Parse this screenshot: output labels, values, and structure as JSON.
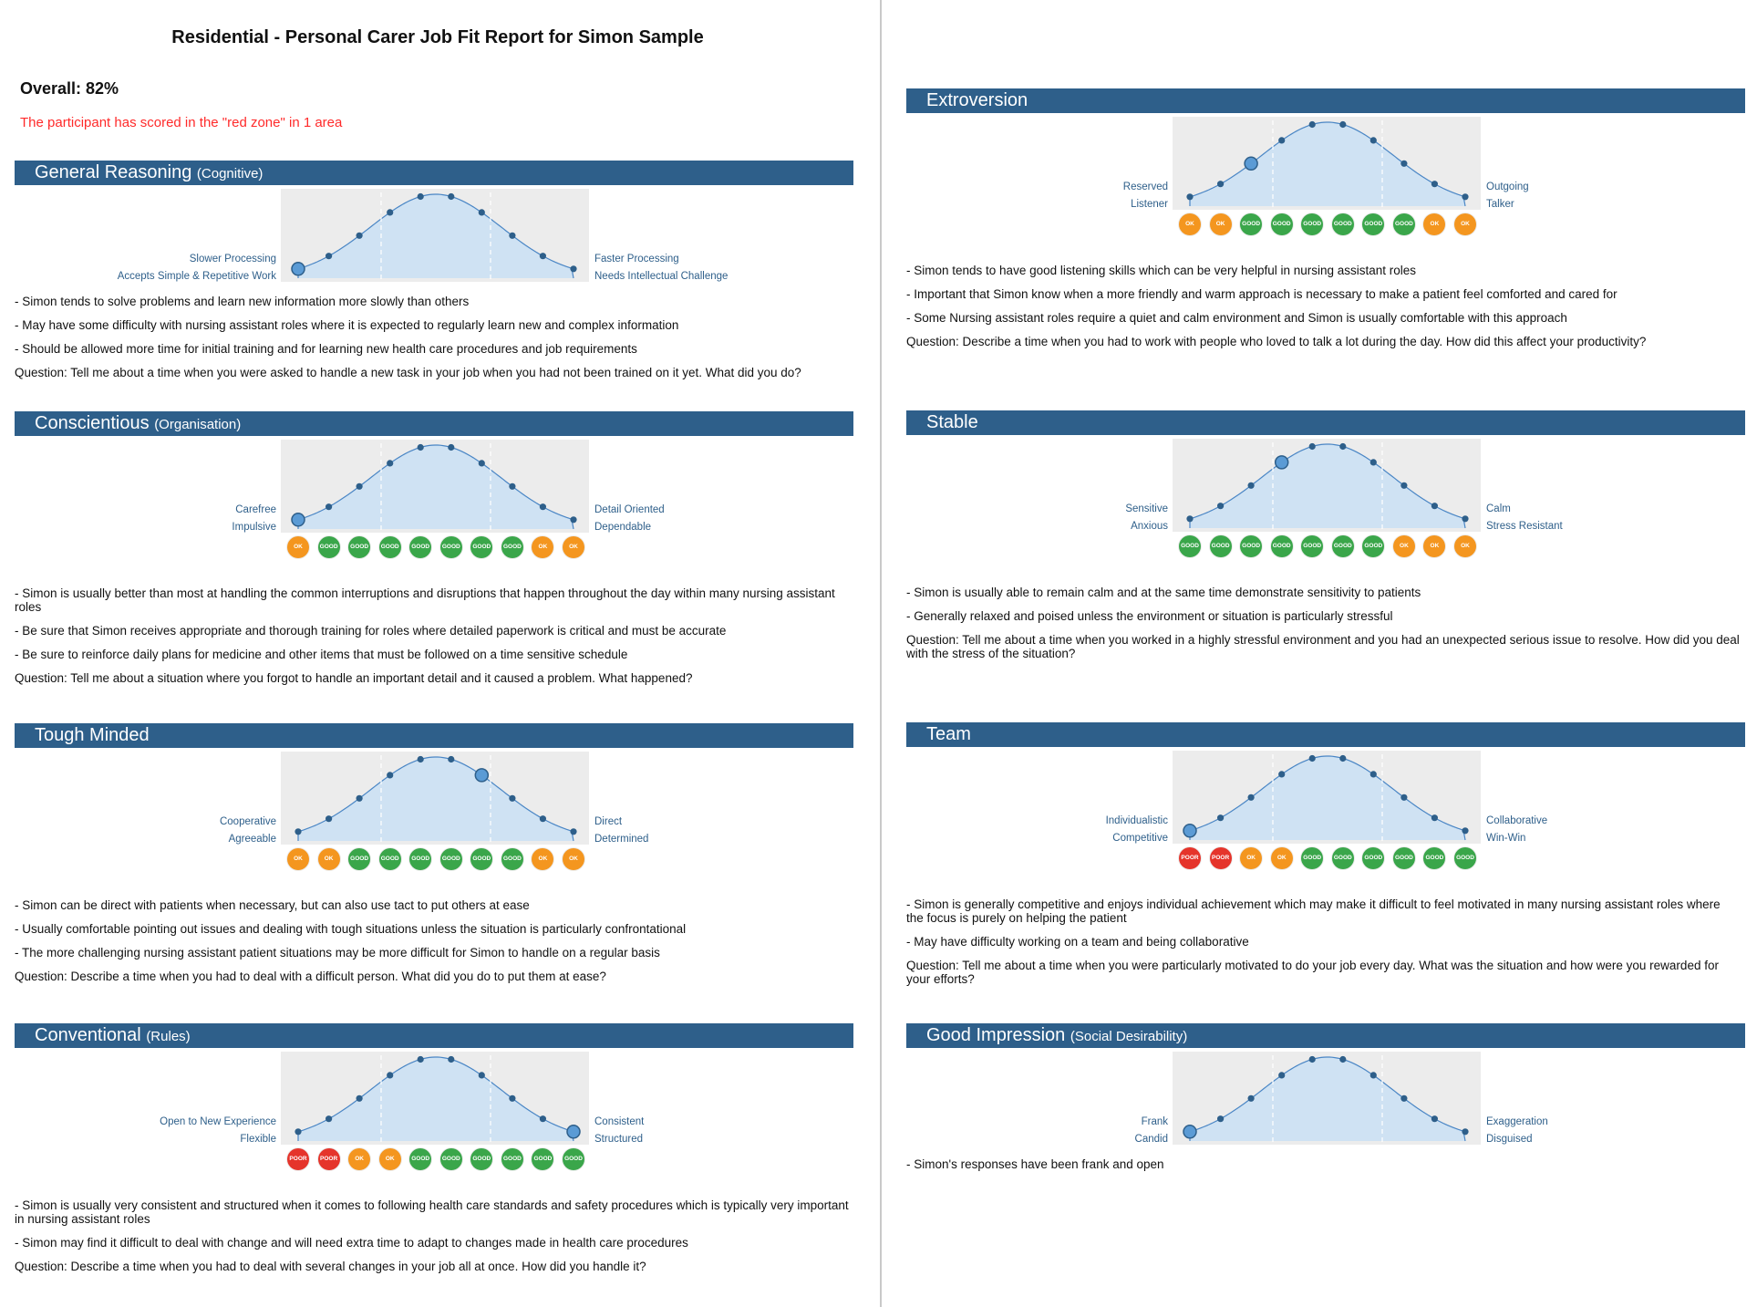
{
  "report": {
    "title": "Residential - Personal Carer Job Fit Report for Simon Sample",
    "overall": "Overall: 82%",
    "red_zone_note": "The participant has scored in the \"red zone\" in 1 area"
  },
  "colors": {
    "header_bg": "#2e5f8a",
    "ok": "#f4961f",
    "good": "#3aa64a",
    "poor": "#e5342b",
    "curve_fill": "#cfe2f3",
    "chart_bg": "#ececec"
  },
  "sections": [
    {
      "id": "general-reasoning",
      "title": "General Reasoning",
      "subtitle": "(Cognitive)",
      "left_label_1": "Slower Processing",
      "left_label_2": "Accepts Simple & Repetitive Work",
      "right_label_1": "Faster Processing",
      "right_label_2": "Needs Intellectual Challenge",
      "marker_position": 1,
      "badges": [],
      "bullets": [
        "- Simon tends to solve problems and learn new information more slowly than others",
        "- May have some difficulty with nursing assistant roles where it is expected to regularly learn new and complex information",
        "- Should be allowed more time for initial training and for learning new health care procedures and job requirements"
      ],
      "question": "Question: Tell me about a time when you were asked to handle a new task in your job when you had not been trained on it yet. What did you do?"
    },
    {
      "id": "conscientious",
      "title": "Conscientious",
      "subtitle": "(Organisation)",
      "left_label_1": "Carefree",
      "left_label_2": "Impulsive",
      "right_label_1": "Detail Oriented",
      "right_label_2": "Dependable",
      "marker_position": 1,
      "badges": [
        "OK",
        "GOOD",
        "GOOD",
        "GOOD",
        "GOOD",
        "GOOD",
        "GOOD",
        "GOOD",
        "OK",
        "OK"
      ],
      "bullets": [
        "- Simon is usually better than most at handling the common interruptions and disruptions that happen throughout the day within many nursing assistant roles",
        "- Be sure that Simon receives appropriate and thorough training for roles where detailed paperwork is critical and must be accurate",
        "- Be sure to reinforce daily plans for medicine and other items that must be followed on a time sensitive schedule"
      ],
      "question": "Question: Tell me about a situation where you forgot to handle an important detail and it caused a problem. What happened?"
    },
    {
      "id": "tough-minded",
      "title": "Tough Minded",
      "subtitle": "",
      "left_label_1": "Cooperative",
      "left_label_2": "Agreeable",
      "right_label_1": "Direct",
      "right_label_2": "Determined",
      "marker_position": 7,
      "badges": [
        "OK",
        "OK",
        "GOOD",
        "GOOD",
        "GOOD",
        "GOOD",
        "GOOD",
        "GOOD",
        "OK",
        "OK"
      ],
      "bullets": [
        "- Simon can be direct with patients when necessary, but can also use tact to put others at ease",
        "- Usually comfortable pointing out issues and dealing with tough situations unless the situation is particularly confrontational",
        "- The more challenging nursing assistant patient situations may be more difficult for Simon to handle on a regular basis"
      ],
      "question": "Question: Describe a time when you had to deal with a difficult person. What did you do to put them at ease?"
    },
    {
      "id": "conventional",
      "title": "Conventional",
      "subtitle": "(Rules)",
      "left_label_1": "Open to New Experience",
      "left_label_2": "Flexible",
      "right_label_1": "Consistent",
      "right_label_2": "Structured",
      "marker_position": 10,
      "badges": [
        "POOR",
        "POOR",
        "OK",
        "OK",
        "GOOD",
        "GOOD",
        "GOOD",
        "GOOD",
        "GOOD",
        "GOOD"
      ],
      "bullets": [
        "- Simon is usually very consistent and structured when it comes to following health care standards and safety procedures which is typically very important in nursing assistant roles",
        "- Simon may find it difficult to deal with change and will need extra time to adapt to changes made in health care procedures"
      ],
      "question": "Question: Describe a time when you had to deal with several changes in your job all at once. How did you handle it?"
    },
    {
      "id": "extroversion",
      "title": "Extroversion",
      "subtitle": "",
      "left_label_1": "Reserved",
      "left_label_2": "Listener",
      "right_label_1": "Outgoing",
      "right_label_2": "Talker",
      "marker_position": 3,
      "badges": [
        "OK",
        "OK",
        "GOOD",
        "GOOD",
        "GOOD",
        "GOOD",
        "GOOD",
        "GOOD",
        "OK",
        "OK"
      ],
      "bullets": [
        "- Simon tends to have good listening skills which can be very helpful in nursing assistant roles",
        "- Important that Simon know when a more friendly and warm approach is necessary to make a patient feel comforted and cared for",
        "- Some Nursing assistant roles require a quiet and calm environment and Simon is usually comfortable with this approach"
      ],
      "question": "Question: Describe a time when you had to work with people who loved to talk a lot during the day. How did this affect your productivity?"
    },
    {
      "id": "stable",
      "title": "Stable",
      "subtitle": "",
      "left_label_1": "Sensitive",
      "left_label_2": "Anxious",
      "right_label_1": "Calm",
      "right_label_2": "Stress Resistant",
      "marker_position": 4,
      "badges": [
        "GOOD",
        "GOOD",
        "GOOD",
        "GOOD",
        "GOOD",
        "GOOD",
        "GOOD",
        "OK",
        "OK",
        "OK"
      ],
      "bullets": [
        "- Simon is usually able to remain calm and at the same time demonstrate sensitivity to patients",
        "- Generally relaxed and poised unless the environment or situation is particularly stressful"
      ],
      "question": "Question: Tell me about a time when you worked in a highly stressful environment and you had an unexpected serious issue to resolve. How did you deal with the stress of the situation?"
    },
    {
      "id": "team",
      "title": "Team",
      "subtitle": "",
      "left_label_1": "Individualistic",
      "left_label_2": "Competitive",
      "right_label_1": "Collaborative",
      "right_label_2": "Win-Win",
      "marker_position": 1,
      "badges": [
        "POOR",
        "POOR",
        "OK",
        "OK",
        "GOOD",
        "GOOD",
        "GOOD",
        "GOOD",
        "GOOD",
        "GOOD"
      ],
      "bullets": [
        "- Simon is generally competitive and enjoys individual achievement which may make it difficult to feel motivated in many nursing assistant roles where the focus is purely on helping the patient",
        "- May have difficulty working on a team and being collaborative"
      ],
      "question": "Question: Tell me about a time when you were particularly motivated to do your job every day. What was the situation and how were you rewarded for your efforts?"
    },
    {
      "id": "good-impression",
      "title": "Good Impression",
      "subtitle": "(Social Desirability)",
      "left_label_1": "Frank",
      "left_label_2": "Candid",
      "right_label_1": "Exaggeration",
      "right_label_2": "Disguised",
      "marker_position": 1,
      "badges": [],
      "bullets": [
        "- Simon's responses have been frank and open"
      ],
      "question": ""
    }
  ]
}
